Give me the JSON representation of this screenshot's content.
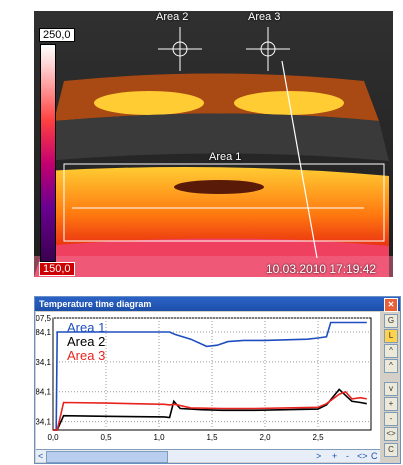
{
  "thermal": {
    "scale_max": "250,0",
    "scale_min": "150,0",
    "area_labels": [
      "Area 2",
      "Area 3",
      "Area 1"
    ],
    "timestamp": "10.03.2010 17:19:42"
  },
  "window": {
    "title": "Temperature time diagram",
    "close_glyph": "✕",
    "side_buttons": [
      "G",
      "L",
      "^",
      "^",
      "v",
      "+",
      "-",
      "<>",
      "C"
    ],
    "hscroll_buttons": [
      "<",
      ">",
      "+",
      "-",
      "<>",
      "C"
    ]
  },
  "chart_data": {
    "type": "line",
    "x_ticks": [
      "0,0",
      "0,5",
      "1,0",
      "1,5",
      "2,0",
      "2,5"
    ],
    "y_ticks": [
      "207,5",
      "184,1",
      "134,1",
      "84,1",
      "34,1"
    ],
    "xlim": [
      0,
      3.0
    ],
    "ylim": [
      20,
      207.5
    ],
    "grid": true,
    "legend_position": "top-left",
    "series": [
      {
        "name": "Area 1",
        "color": "#1f4fbf",
        "x": [
          0.0,
          0.03,
          0.04,
          0.4,
          0.9,
          1.1,
          1.15,
          1.3,
          1.45,
          1.55,
          1.65,
          1.8,
          2.0,
          2.2,
          2.4,
          2.5,
          2.58,
          2.62,
          2.75,
          2.96
        ],
        "y": [
          20,
          20,
          184,
          184,
          184,
          184,
          180,
          172,
          160,
          162,
          168,
          170,
          170,
          171,
          172,
          174,
          176,
          200,
          200,
          200
        ]
      },
      {
        "name": "Area 2",
        "color": "#000000",
        "x": [
          0.0,
          0.04,
          0.1,
          0.5,
          1.05,
          1.1,
          1.14,
          1.2,
          1.4,
          1.6,
          1.9,
          2.2,
          2.5,
          2.58,
          2.7,
          2.76,
          2.82,
          2.9,
          2.96
        ],
        "y": [
          20,
          20,
          44,
          43,
          42,
          41,
          68,
          56,
          54,
          53,
          53,
          54,
          55,
          62,
          88,
          78,
          68,
          66,
          64
        ]
      },
      {
        "name": "Area 3",
        "color": "#e8231e",
        "x": [
          0.0,
          0.04,
          0.1,
          0.5,
          1.05,
          1.1,
          1.15,
          1.3,
          1.6,
          1.9,
          2.2,
          2.5,
          2.58,
          2.7,
          2.76,
          2.82,
          2.9,
          2.96
        ],
        "y": [
          20,
          20,
          66,
          65,
          63,
          62,
          63,
          57,
          56,
          56,
          57,
          58,
          64,
          80,
          84,
          72,
          74,
          72
        ]
      }
    ]
  }
}
